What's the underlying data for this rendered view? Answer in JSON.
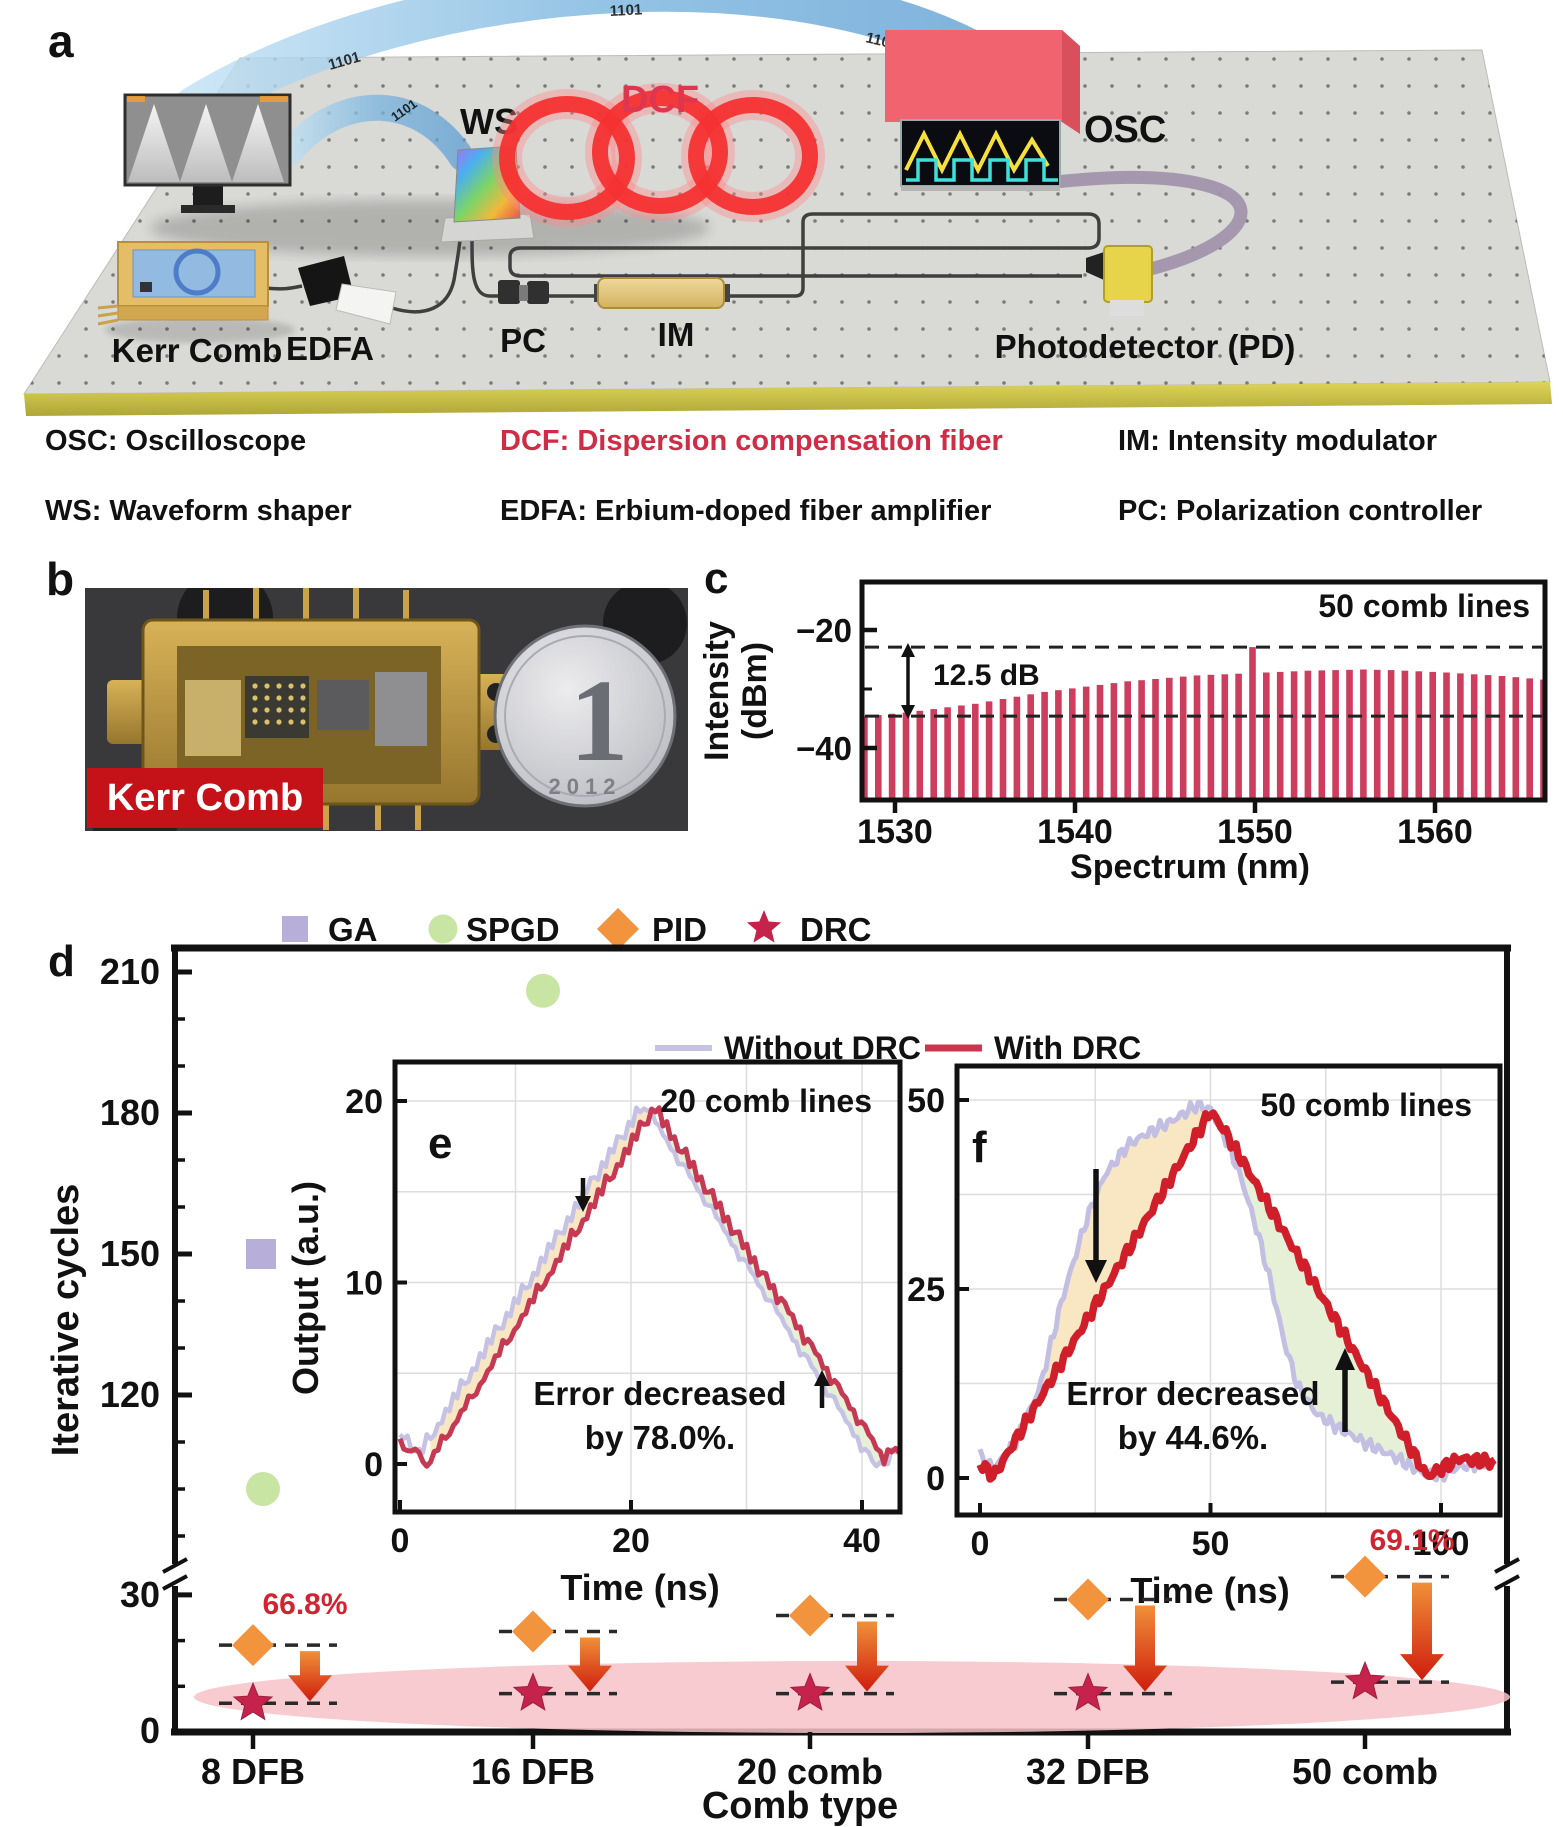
{
  "panel_a": {
    "label": "a",
    "data_stream_digits": "1101",
    "devices": {
      "ws": "WS",
      "dcf": "DCF",
      "osc": "OSC",
      "kerr_comb": "Kerr Comb",
      "edfa": "EDFA",
      "pc": "PC",
      "im": "IM",
      "pd": "Photodetector (PD)"
    }
  },
  "abbreviations": {
    "row1": [
      {
        "text": "OSC: Oscilloscope",
        "color": "#111111"
      },
      {
        "text": "DCF: Dispersion compensation fiber",
        "color": "#cf2c46"
      },
      {
        "text": "IM: Intensity modulator",
        "color": "#111111"
      }
    ],
    "row2": [
      {
        "text": "WS: Waveform shaper",
        "color": "#111111"
      },
      {
        "text": "EDFA: Erbium-doped fiber amplifier",
        "color": "#111111"
      },
      {
        "text": "PC: Polarization controller",
        "color": "#111111"
      }
    ]
  },
  "panel_b": {
    "label": "b",
    "badge": "Kerr Comb",
    "coin_digit": "1",
    "coin_year": "2012"
  },
  "panel_c_label": "c",
  "panel_d_label": "d",
  "chart_data": [
    {
      "id": "c",
      "type": "bar",
      "annotation": "50 comb lines",
      "arrow_label": "12.5 dB",
      "xlabel": "Spectrum (nm)",
      "ylabel_lines": [
        "Intensity",
        "(dBm)"
      ],
      "xticks": [
        1530,
        1540,
        1550,
        1560
      ],
      "yticks": [
        -20,
        -40
      ],
      "yticks_minor": [
        -30
      ],
      "xlim": [
        1528.2,
        1566.6
      ],
      "ylim": [
        -48.8,
        -14.8
      ],
      "dashed_lines_dBm": [
        -22.9,
        -34.6
      ],
      "x_start_nm": 1528.3,
      "x_step_nm": 0.77,
      "bar_color": "#cc3d5e",
      "values_dBm": [
        -34.6,
        -34.4,
        -34.2,
        -34.0,
        -33.7,
        -33.4,
        -33.1,
        -32.8,
        -32.5,
        -32.1,
        -31.7,
        -31.3,
        -30.9,
        -30.5,
        -30.2,
        -29.9,
        -29.6,
        -29.3,
        -29.0,
        -28.7,
        -28.5,
        -28.3,
        -28.1,
        -27.9,
        -27.7,
        -27.6,
        -27.5,
        -27.4,
        -22.9,
        -27.2,
        -27.1,
        -27.0,
        -26.9,
        -26.85,
        -26.8,
        -26.75,
        -26.7,
        -26.75,
        -26.8,
        -26.9,
        -27.0,
        -27.1,
        -27.2,
        -27.35,
        -27.5,
        -27.65,
        -27.8,
        -28.0,
        -28.2,
        -28.4
      ]
    },
    {
      "id": "d",
      "type": "scatter",
      "xlabel": "Comb type",
      "ylabel": "Iterative cycles",
      "categories": [
        "8 DFB",
        "16 DFB",
        "20 comb",
        "32 DFB",
        "50 comb"
      ],
      "broken_axis": {
        "top_ticks": [
          210,
          180,
          150,
          120
        ],
        "bottom_ticks": [
          30,
          0
        ]
      },
      "series": [
        {
          "name": "GA",
          "marker": "square",
          "color": "#b7aeda",
          "values": [
            150,
            null,
            null,
            null,
            null
          ]
        },
        {
          "name": "SPGD",
          "marker": "circle",
          "color": "#c8e5a4",
          "values": [
            100,
            206,
            null,
            null,
            null
          ]
        },
        {
          "name": "PID",
          "marker": "diamond",
          "color": "#f2933e",
          "values": [
            19,
            22,
            25.5,
            29,
            34
          ]
        },
        {
          "name": "DRC",
          "marker": "star",
          "color": "#c5234c",
          "values": [
            6.3,
            8.4,
            8.4,
            8.4,
            10.9
          ]
        }
      ],
      "reduction_labels": [
        {
          "text": "66.8%",
          "category": "8 DFB"
        },
        {
          "text": "69.1%",
          "category": "50 comb"
        }
      ],
      "annotation_color": "#d42330"
    },
    {
      "id": "e",
      "type": "line",
      "panel_label": "e",
      "title": "20 comb lines",
      "xlabel": "Time (ns)",
      "ylabel": "Output (a.u.)",
      "xticks": [
        0,
        20,
        40
      ],
      "yticks": [
        0,
        10,
        20
      ],
      "note_line1": "Error decreased",
      "note_line2": "by 78.0%.",
      "series": [
        {
          "name": "Without DRC",
          "color": "#c6c2e4",
          "keypoints": [
            [
              0,
              1.8
            ],
            [
              1.6,
              0.5
            ],
            [
              21,
              19.9
            ],
            [
              41,
              0.05
            ],
            [
              43.5,
              0.7
            ]
          ]
        },
        {
          "name": "With DRC",
          "color": "#c53a52",
          "keypoints": [
            [
              0,
              1.2
            ],
            [
              2.6,
              0.1
            ],
            [
              22,
              19.6
            ],
            [
              42,
              0.25
            ],
            [
              43.5,
              1.1
            ]
          ]
        }
      ]
    },
    {
      "id": "f",
      "type": "line",
      "panel_label": "f",
      "title": "50 comb lines",
      "xlabel": "Time (ns)",
      "xticks": [
        0,
        50,
        100
      ],
      "yticks": [
        0,
        25,
        50
      ],
      "note_line1": "Error decreased",
      "note_line2": "by 44.6%.",
      "series": [
        {
          "name": "Without DRC",
          "color": "#c3bfe2",
          "keypoints": [
            [
              0,
              3
            ],
            [
              3,
              1.2
            ],
            [
              8,
              5
            ],
            [
              13,
              12
            ],
            [
              18,
              24
            ],
            [
              23,
              34
            ],
            [
              27,
              40
            ],
            [
              32,
              44
            ],
            [
              36,
              45.5
            ],
            [
              41,
              47
            ],
            [
              47,
              49.3
            ],
            [
              50,
              48.8
            ],
            [
              54,
              44
            ],
            [
              57,
              39
            ],
            [
              60,
              33
            ],
            [
              63,
              26
            ],
            [
              66,
              18
            ],
            [
              69,
              12
            ],
            [
              73,
              8.5
            ],
            [
              78,
              6.5
            ],
            [
              84,
              4.5
            ],
            [
              90,
              2.8
            ],
            [
              96,
              0.6
            ],
            [
              100,
              0.3
            ],
            [
              104,
              1.5
            ],
            [
              112,
              2.2
            ]
          ]
        },
        {
          "name": "With DRC",
          "color": "#d01f2a",
          "keypoints": [
            [
              0,
              2
            ],
            [
              3,
              0.2
            ],
            [
              50,
              48.5
            ],
            [
              53,
              46
            ],
            [
              97,
              0.2
            ],
            [
              104,
              2.6
            ],
            [
              112,
              2.0
            ]
          ]
        }
      ]
    }
  ]
}
